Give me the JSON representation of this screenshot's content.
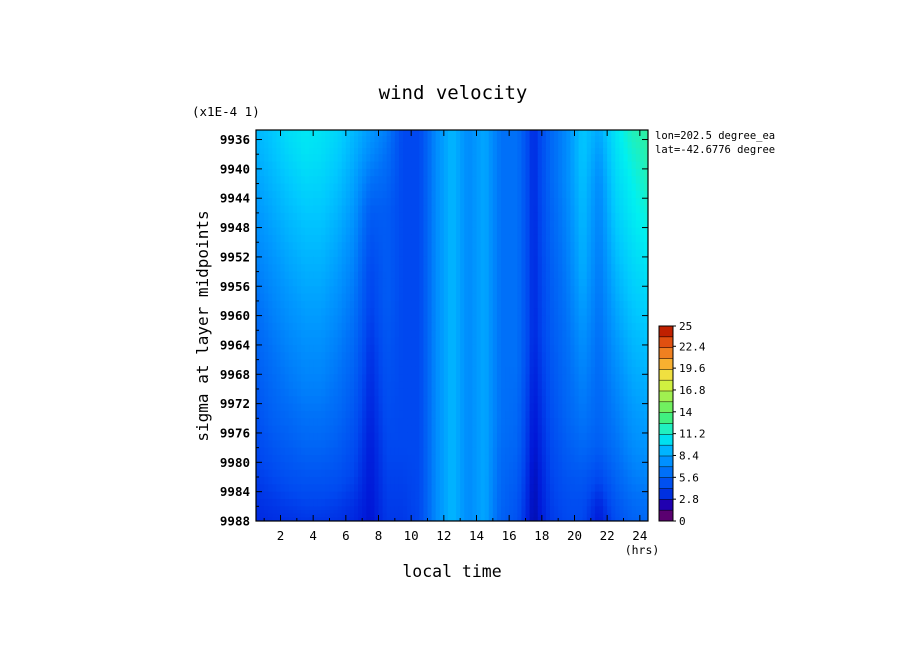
{
  "chart_data": {
    "type": "heatmap",
    "title": "wind velocity",
    "xlabel": "local time",
    "xunit": "(hrs)",
    "ylabel": "sigma at layer midpoints",
    "yscale_label": "(x1E-4 1)",
    "info_lines": [
      "lon=202.5 degree_ea",
      "lat=-42.6776 degree"
    ],
    "x_ticks": [
      "2",
      "4",
      "6",
      "8",
      "10",
      "12",
      "14",
      "16",
      "18",
      "20",
      "22",
      "24"
    ],
    "y_ticks": [
      "9936",
      "9940",
      "9944",
      "9948",
      "9952",
      "9956",
      "9960",
      "9964",
      "9968",
      "9972",
      "9976",
      "9980",
      "9984",
      "9988"
    ],
    "colorbar_ticks": [
      "25",
      "22.4",
      "19.6",
      "16.8",
      "14",
      "11.2",
      "8.4",
      "5.6",
      "2.8",
      "0"
    ],
    "colorbar_range": [
      0,
      25
    ],
    "colorbar_colors": [
      "#5a0070",
      "#2000b0",
      "#0030e0",
      "#0050f0",
      "#0070f8",
      "#0090ff",
      "#00b4ff",
      "#00e0f0",
      "#20f0c0",
      "#40f080",
      "#70f060",
      "#a0f050",
      "#d0f040",
      "#f0e040",
      "#f8b030",
      "#f08020",
      "#e05010",
      "#c02000"
    ],
    "x": [
      0.5,
      1.5,
      2.5,
      3.5,
      4.5,
      5.5,
      6.5,
      7.5,
      8.5,
      9.5,
      10.5,
      11.5,
      12.5,
      13.5,
      14.5,
      15.5,
      16.5,
      17.5,
      18.5,
      19.5,
      20.5,
      21.5,
      22.5,
      23.5,
      24.5
    ],
    "y": [
      9934.7,
      9938,
      9942,
      9946,
      9950,
      9954,
      9958,
      9962,
      9966,
      9970,
      9974,
      9978,
      9982,
      9986,
      9988
    ],
    "z": [
      [
        7.5,
        8.0,
        8.8,
        9.2,
        9.0,
        8.5,
        7.5,
        6.5,
        5.5,
        3.0,
        3.0,
        6.0,
        7.5,
        6.0,
        7.0,
        5.0,
        5.0,
        2.0,
        4.5,
        6.0,
        8.0,
        7.0,
        9.0,
        10.5,
        11.0
      ],
      [
        7.2,
        7.8,
        8.5,
        9.0,
        8.8,
        8.2,
        7.2,
        6.0,
        5.0,
        3.0,
        3.0,
        6.0,
        7.5,
        6.0,
        7.0,
        5.0,
        5.0,
        2.0,
        4.5,
        6.0,
        8.0,
        6.5,
        8.8,
        10.0,
        10.8
      ],
      [
        6.8,
        7.4,
        8.0,
        8.5,
        8.4,
        7.8,
        6.8,
        5.0,
        4.5,
        3.0,
        3.0,
        6.0,
        7.5,
        6.0,
        7.0,
        5.0,
        5.0,
        2.0,
        4.5,
        6.0,
        7.8,
        6.0,
        8.5,
        9.5,
        10.5
      ],
      [
        6.4,
        7.0,
        7.6,
        8.0,
        8.0,
        7.4,
        6.4,
        4.0,
        4.0,
        3.0,
        3.0,
        6.0,
        7.5,
        6.0,
        7.0,
        5.0,
        5.0,
        2.0,
        4.3,
        5.8,
        7.6,
        5.8,
        8.2,
        9.2,
        10.0
      ],
      [
        6.0,
        6.6,
        7.2,
        7.6,
        7.6,
        7.0,
        6.0,
        3.5,
        4.0,
        3.0,
        3.0,
        6.0,
        7.5,
        6.0,
        7.0,
        5.0,
        5.0,
        2.0,
        4.2,
        5.6,
        7.4,
        5.6,
        7.8,
        8.8,
        9.5
      ],
      [
        5.5,
        6.2,
        6.8,
        7.2,
        7.2,
        6.6,
        5.6,
        3.0,
        4.0,
        3.0,
        3.0,
        6.0,
        7.5,
        6.0,
        7.0,
        5.0,
        5.0,
        2.0,
        4.0,
        5.4,
        7.2,
        5.4,
        7.4,
        8.4,
        9.0
      ],
      [
        5.0,
        5.8,
        6.4,
        6.8,
        6.8,
        6.2,
        5.2,
        2.8,
        4.0,
        3.0,
        3.0,
        6.0,
        7.5,
        6.0,
        7.0,
        5.0,
        5.0,
        2.0,
        3.9,
        5.2,
        6.8,
        5.2,
        7.0,
        8.0,
        8.5
      ],
      [
        4.6,
        5.4,
        6.0,
        6.4,
        6.4,
        5.8,
        4.8,
        2.5,
        3.8,
        3.0,
        3.0,
        6.0,
        7.5,
        6.0,
        7.0,
        5.0,
        5.0,
        2.0,
        3.8,
        5.0,
        6.4,
        5.0,
        6.6,
        7.6,
        8.0
      ],
      [
        4.2,
        5.0,
        5.6,
        6.0,
        6.0,
        5.4,
        4.4,
        2.2,
        3.6,
        3.0,
        3.0,
        6.0,
        7.5,
        6.0,
        7.0,
        5.0,
        5.0,
        1.8,
        3.6,
        4.8,
        6.0,
        4.8,
        6.2,
        7.2,
        7.6
      ],
      [
        3.8,
        4.6,
        5.2,
        5.6,
        5.6,
        5.0,
        4.0,
        2.0,
        3.4,
        3.0,
        3.0,
        6.0,
        7.5,
        6.0,
        7.0,
        5.0,
        4.8,
        1.6,
        3.4,
        4.6,
        5.6,
        4.6,
        5.8,
        6.8,
        7.2
      ],
      [
        3.4,
        4.2,
        4.6,
        5.0,
        5.0,
        4.6,
        3.6,
        1.8,
        3.2,
        3.0,
        3.0,
        6.0,
        7.5,
        6.0,
        7.0,
        5.0,
        4.6,
        1.4,
        3.2,
        4.4,
        5.2,
        4.4,
        5.4,
        6.4,
        6.8
      ],
      [
        3.0,
        3.6,
        4.0,
        4.4,
        4.4,
        4.0,
        3.2,
        1.6,
        3.0,
        3.0,
        3.0,
        6.0,
        7.5,
        6.0,
        7.0,
        4.8,
        4.4,
        1.2,
        3.0,
        4.0,
        4.6,
        4.0,
        5.0,
        6.0,
        6.4
      ],
      [
        2.6,
        3.0,
        3.4,
        3.6,
        3.6,
        3.4,
        2.8,
        1.5,
        2.8,
        2.8,
        3.0,
        6.0,
        7.5,
        6.0,
        7.0,
        4.6,
        4.0,
        1.0,
        2.8,
        3.6,
        3.8,
        3.0,
        4.4,
        5.4,
        5.8
      ],
      [
        2.2,
        2.4,
        2.6,
        2.8,
        2.8,
        2.6,
        2.2,
        1.4,
        2.6,
        2.6,
        3.0,
        6.0,
        7.5,
        6.0,
        7.0,
        4.4,
        3.6,
        0.9,
        2.6,
        3.2,
        3.2,
        1.8,
        3.6,
        4.6,
        5.0
      ],
      [
        2.0,
        2.2,
        2.3,
        2.4,
        2.4,
        2.3,
        2.0,
        1.3,
        2.5,
        2.5,
        3.0,
        6.0,
        7.5,
        6.0,
        7.0,
        4.2,
        3.4,
        0.8,
        2.5,
        3.0,
        3.0,
        1.5,
        3.2,
        4.2,
        4.6
      ]
    ]
  }
}
